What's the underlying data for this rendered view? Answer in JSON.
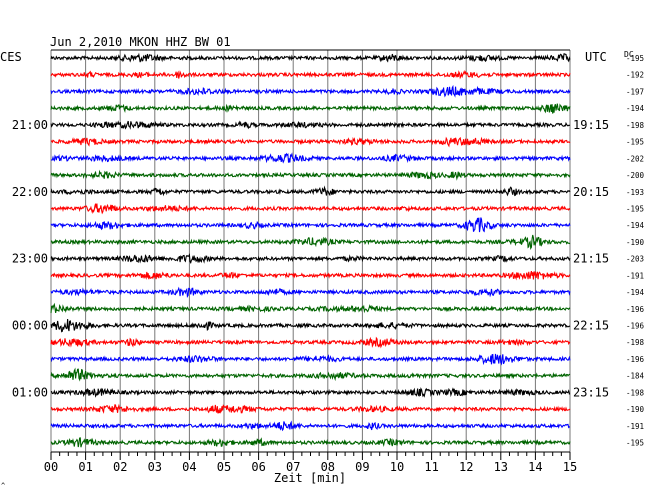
{
  "chart_data": {
    "type": "line",
    "title": "Jun 2,2010   MKON HHZ BW 01",
    "left_axis_label": "CES",
    "right_axis_label": "UTC",
    "dc_label": "DC",
    "xlabel": "Zeit [min]",
    "x_ticks": [
      "00",
      "01",
      "02",
      "03",
      "04",
      "05",
      "06",
      "07",
      "08",
      "09",
      "10",
      "11",
      "12",
      "13",
      "14",
      "15"
    ],
    "xlim": [
      0,
      15
    ],
    "grid": "vertical, every minute",
    "left_time_labels": [
      {
        "trace_index": 4,
        "label": "21:00"
      },
      {
        "trace_index": 8,
        "label": "22:00"
      },
      {
        "trace_index": 12,
        "label": "23:00"
      },
      {
        "trace_index": 16,
        "label": "00:00"
      },
      {
        "trace_index": 20,
        "label": "01:00"
      }
    ],
    "right_time_labels": [
      {
        "trace_index": 4,
        "label": "19:15"
      },
      {
        "trace_index": 8,
        "label": "20:15"
      },
      {
        "trace_index": 12,
        "label": "21:15"
      },
      {
        "trace_index": 16,
        "label": "22:15"
      },
      {
        "trace_index": 20,
        "label": "23:15"
      }
    ],
    "trace_color_cycle": [
      "#000000",
      "#ff0000",
      "#0000ff",
      "#006400"
    ],
    "dc_offsets": [
      "-195",
      "-192",
      "-197",
      "-194",
      "-198",
      "-195",
      "-202",
      "-200",
      "-193",
      "-195",
      "-194",
      "-190",
      "-203",
      "-191",
      "-194",
      "-196",
      "-196",
      "-198",
      "-196",
      "-184",
      "-198",
      "-190",
      "-191",
      "-195"
    ]
  }
}
